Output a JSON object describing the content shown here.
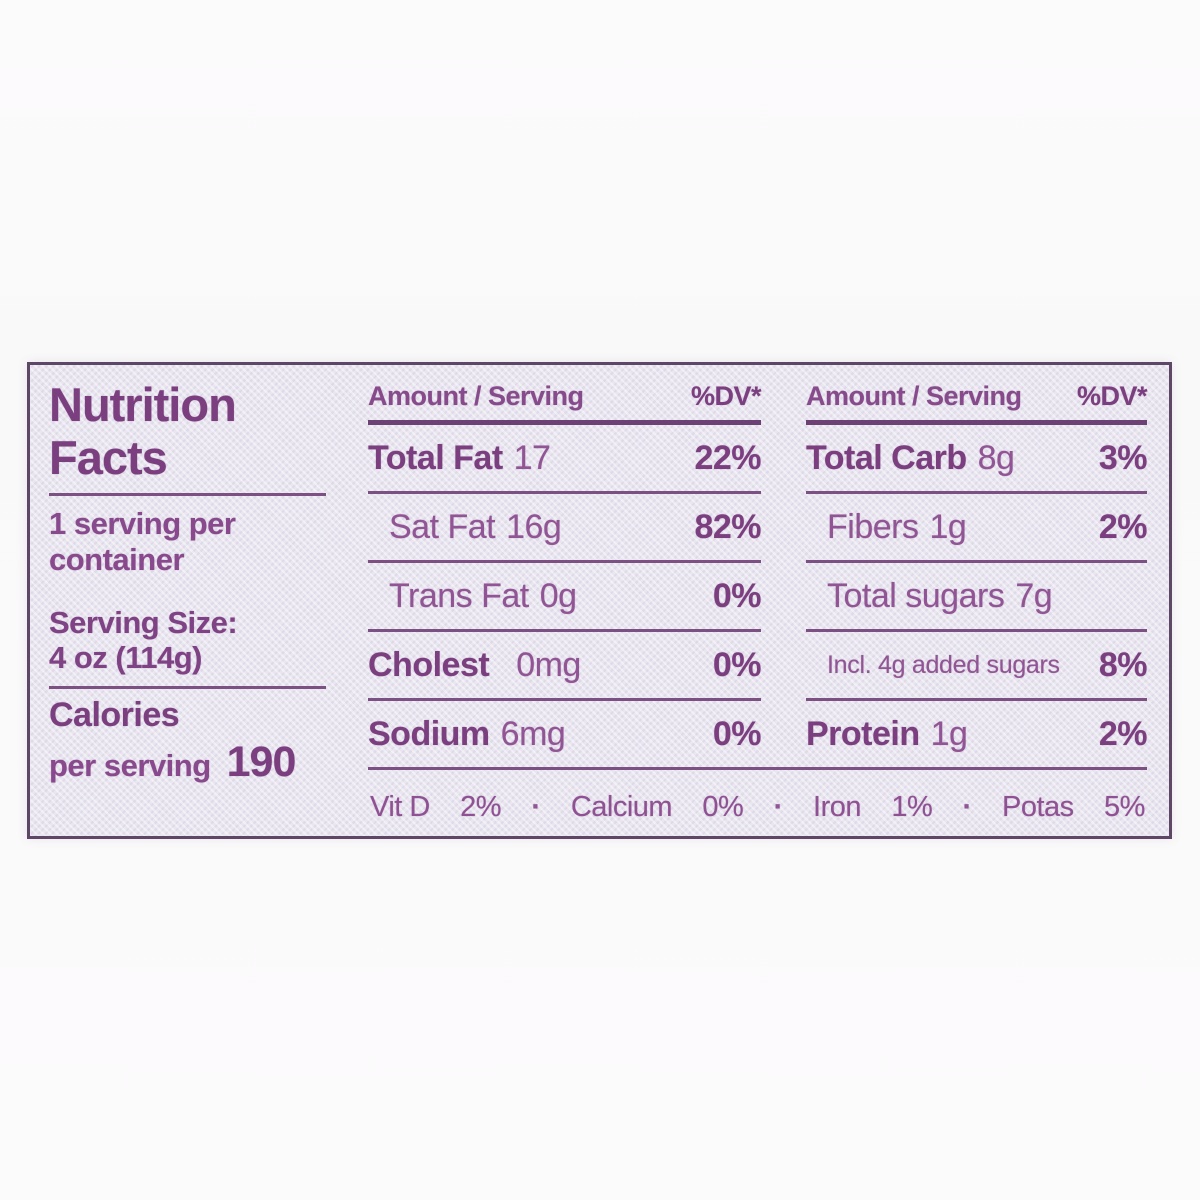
{
  "label": {
    "title": "Nutrition\nFacts",
    "servings_per_container": "1 serving per\ncontainer",
    "serving_size_label": "Serving Size:",
    "serving_size_value": "4 oz (114g)",
    "calories_label": "Calories",
    "calories_sublabel": "per serving",
    "calories_value": "190",
    "col_header_amount": "Amount / Serving",
    "col_header_dv": "%DV*",
    "columns": [
      {
        "rows": [
          {
            "name": "Total Fat",
            "amount": "17",
            "dv": "22%"
          },
          {
            "name": "Sat Fat",
            "amount": "16g",
            "dv": "82%"
          },
          {
            "name": "Trans Fat",
            "amount": "0g",
            "dv": "0%"
          },
          {
            "name": "Cholest",
            "amount": "0mg",
            "dv": "0%"
          },
          {
            "name": "Sodium",
            "amount": "6mg",
            "dv": "0%"
          }
        ]
      },
      {
        "rows": [
          {
            "name": "Total Carb",
            "amount": "8g",
            "dv": "3%"
          },
          {
            "name": "Fibers",
            "amount": "1g",
            "dv": "2%"
          },
          {
            "name": "Total sugars",
            "amount": "7g",
            "dv": ""
          },
          {
            "name": "Incl. 4g added sugars",
            "amount": "",
            "dv": "8%"
          },
          {
            "name": "Protein",
            "amount": "1g",
            "dv": "2%"
          }
        ]
      }
    ],
    "micronutrients": [
      {
        "name": "Vit D",
        "dv": "2%"
      },
      {
        "name": "Calcium",
        "dv": "0%"
      },
      {
        "name": "Iron",
        "dv": "1%"
      },
      {
        "name": "Potas",
        "dv": "5%"
      }
    ],
    "separator": "·"
  },
  "colors": {
    "text_regular": "#915494",
    "text_bold": "#7b3f80",
    "rule": "#7c5082",
    "header_rule": "#6d4173",
    "border": "#5e4766",
    "label_background": "#e9e6f0",
    "page_background": "#fbfafb"
  }
}
